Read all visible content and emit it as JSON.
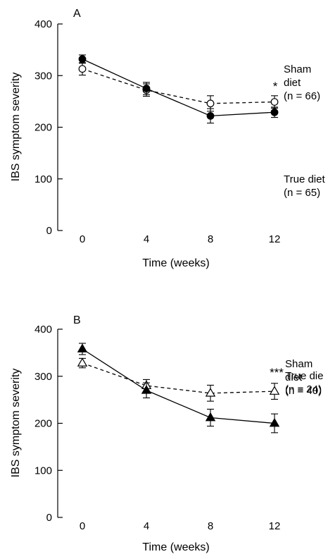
{
  "chart_data": [
    {
      "type": "line",
      "panel_label": "A",
      "xlabel": "Time (weeks)",
      "ylabel": "IBS symptom severity",
      "x": [
        0,
        4,
        8,
        12
      ],
      "xticks": [
        "0",
        "4",
        "8",
        "12"
      ],
      "ylim": [
        0,
        400
      ],
      "yticks": [
        "0",
        "100",
        "200",
        "300",
        "400"
      ],
      "grid": false,
      "series": [
        {
          "marker": "filled-circle",
          "line_style": "solid",
          "values": [
            332,
            275,
            222,
            229
          ],
          "error": [
            8,
            12,
            14,
            10
          ],
          "label_lines": [
            "True diet",
            "(n = 65)"
          ]
        },
        {
          "marker": "open-circle",
          "line_style": "dashed",
          "values": [
            313,
            272,
            246,
            249
          ],
          "error": [
            12,
            12,
            15,
            12
          ],
          "label_lines": [
            "Sham",
            "diet",
            "(n = 66)"
          ]
        }
      ],
      "significance": "*"
    },
    {
      "type": "line",
      "panel_label": "B",
      "xlabel": "Time (weeks)",
      "ylabel": "IBS symptom severity",
      "x": [
        0,
        4,
        8,
        12
      ],
      "xticks": [
        "0",
        "4",
        "8",
        "12"
      ],
      "ylim": [
        0,
        400
      ],
      "yticks": [
        "0",
        "100",
        "200",
        "300",
        "400"
      ],
      "grid": false,
      "series": [
        {
          "marker": "filled-triangle",
          "line_style": "solid",
          "values": [
            358,
            270,
            212,
            200
          ],
          "error": [
            12,
            16,
            18,
            20
          ],
          "label_lines": [
            "True die",
            "(n = 24)"
          ]
        },
        {
          "marker": "open-triangle",
          "line_style": "dashed",
          "values": [
            328,
            280,
            264,
            268
          ],
          "error": [
            10,
            13,
            17,
            17
          ],
          "label_lines": [
            "Sham",
            "diet",
            "(n = 40)"
          ]
        }
      ],
      "significance": "***"
    }
  ]
}
